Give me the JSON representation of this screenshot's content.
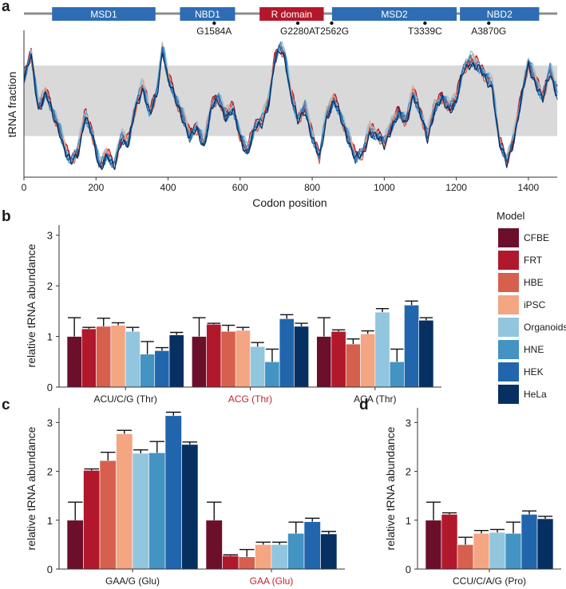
{
  "colors": {
    "domain_blue": "#2e6db4",
    "domain_red": "#b3172b",
    "band": "#d9d9d9",
    "axis": "#333333",
    "label_red": "#c0272d"
  },
  "panel_a": {
    "label": "a",
    "domains": [
      {
        "name": "MSD1",
        "start": 78,
        "end": 365,
        "color": "blue"
      },
      {
        "name": "NBD1",
        "start": 433,
        "end": 586,
        "color": "blue"
      },
      {
        "name": "R domain",
        "start": 654,
        "end": 832,
        "color": "red"
      },
      {
        "name": "MSD2",
        "start": 855,
        "end": 1201,
        "color": "blue"
      },
      {
        "name": "NBD2",
        "start": 1210,
        "end": 1430,
        "color": "blue"
      }
    ],
    "snps": [
      {
        "label": "G1584A",
        "codon": 528
      },
      {
        "label": "G2280A",
        "codon": 760
      },
      {
        "label": "T2562G",
        "codon": 854
      },
      {
        "label": "T3339C",
        "codon": 1113
      },
      {
        "label": "A3870G",
        "codon": 1290
      }
    ],
    "chart_data": {
      "type": "line",
      "title": "",
      "xlabel": "Codon position",
      "ylabel": "tRNA fraction",
      "xlim": [
        0,
        1480
      ],
      "xticks": [
        "0",
        "200",
        "400",
        "600",
        "800",
        "1000",
        "1200",
        "1400"
      ],
      "ylim": [
        0,
        1
      ],
      "band": [
        0.28,
        0.76
      ],
      "profile_x": [
        0,
        20,
        40,
        60,
        80,
        100,
        115,
        130,
        150,
        170,
        190,
        210,
        230,
        250,
        270,
        290,
        310,
        330,
        350,
        370,
        385,
        400,
        420,
        440,
        460,
        480,
        500,
        520,
        540,
        560,
        580,
        600,
        620,
        640,
        660,
        680,
        695,
        710,
        725,
        740,
        760,
        780,
        800,
        820,
        840,
        860,
        880,
        900,
        920,
        940,
        960,
        980,
        1000,
        1020,
        1040,
        1060,
        1080,
        1100,
        1120,
        1140,
        1160,
        1180,
        1200,
        1220,
        1240,
        1260,
        1280,
        1300,
        1320,
        1340,
        1360,
        1380,
        1400,
        1420,
        1440,
        1460,
        1480
      ],
      "profile_y": [
        0.7,
        0.85,
        0.5,
        0.6,
        0.45,
        0.35,
        0.2,
        0.12,
        0.2,
        0.45,
        0.3,
        0.1,
        0.18,
        0.08,
        0.3,
        0.25,
        0.5,
        0.65,
        0.45,
        0.6,
        0.92,
        0.7,
        0.55,
        0.45,
        0.3,
        0.35,
        0.25,
        0.5,
        0.55,
        0.45,
        0.48,
        0.3,
        0.2,
        0.35,
        0.4,
        0.55,
        0.8,
        0.9,
        0.85,
        0.6,
        0.4,
        0.5,
        0.3,
        0.15,
        0.45,
        0.55,
        0.42,
        0.3,
        0.15,
        0.18,
        0.35,
        0.3,
        0.25,
        0.38,
        0.45,
        0.4,
        0.6,
        0.45,
        0.3,
        0.5,
        0.55,
        0.5,
        0.55,
        0.75,
        0.82,
        0.78,
        0.7,
        0.65,
        0.25,
        0.12,
        0.3,
        0.55,
        0.8,
        0.68,
        0.55,
        0.75,
        0.6
      ],
      "series": [
        {
          "name": "CFBE",
          "offset": 0.02
        },
        {
          "name": "FRT",
          "offset": 0.05
        },
        {
          "name": "HBE",
          "offset": 0.0
        },
        {
          "name": "iPSC",
          "offset": 0.03
        },
        {
          "name": "Organoids",
          "offset": 0.06
        },
        {
          "name": "HNE",
          "offset": 0.01
        },
        {
          "name": "HEK",
          "offset": -0.02
        },
        {
          "name": "HeLa",
          "offset": -0.04
        }
      ]
    }
  },
  "legend": {
    "title": "Model",
    "items": [
      {
        "name": "CFBE",
        "color": "#6b0f2b"
      },
      {
        "name": "FRT",
        "color": "#b2182b"
      },
      {
        "name": "HBE",
        "color": "#d6604d"
      },
      {
        "name": "iPSC",
        "color": "#f4a582"
      },
      {
        "name": "Organoids",
        "color": "#92c5de"
      },
      {
        "name": "HNE",
        "color": "#4393c3"
      },
      {
        "name": "HEK",
        "color": "#2166ac"
      },
      {
        "name": "HeLa",
        "color": "#053061"
      }
    ]
  },
  "panel_b": {
    "label": "b",
    "chart_data": {
      "type": "bar",
      "ylabel": "relative tRNA abundance",
      "ylim": [
        0,
        3.2
      ],
      "yticks": [
        "0",
        "1",
        "2",
        "3"
      ],
      "categories": [
        {
          "label": "ACU/C/G (Thr)",
          "highlight": false
        },
        {
          "label": "ACG (Thr)",
          "highlight": true
        },
        {
          "label": "ACA (Thr)",
          "highlight": false
        }
      ],
      "series": [
        {
          "name": "CFBE",
          "values": [
            1.0,
            1.0,
            1.0
          ],
          "errors": [
            0.37,
            0.37,
            0.37
          ]
        },
        {
          "name": "FRT",
          "values": [
            1.15,
            1.24,
            1.1
          ],
          "errors": [
            0.03,
            0.02,
            0.03
          ]
        },
        {
          "name": "HBE",
          "values": [
            1.2,
            1.1,
            0.85
          ],
          "errors": [
            0.16,
            0.12,
            0.1
          ]
        },
        {
          "name": "iPSC",
          "values": [
            1.22,
            1.12,
            1.05
          ],
          "errors": [
            0.05,
            0.06,
            0.06
          ]
        },
        {
          "name": "Organoids",
          "values": [
            1.1,
            0.8,
            1.48
          ],
          "errors": [
            0.08,
            0.08,
            0.07
          ]
        },
        {
          "name": "HNE",
          "values": [
            0.65,
            0.5,
            0.5
          ],
          "errors": [
            0.25,
            0.25,
            0.25
          ]
        },
        {
          "name": "HEK",
          "values": [
            0.72,
            1.35,
            1.62
          ],
          "errors": [
            0.06,
            0.08,
            0.08
          ]
        },
        {
          "name": "HeLa",
          "values": [
            1.03,
            1.2,
            1.32
          ],
          "errors": [
            0.05,
            0.06,
            0.05
          ]
        }
      ]
    }
  },
  "panel_c": {
    "label": "c",
    "chart_data": {
      "type": "bar",
      "ylabel": "relative tRNA abundance",
      "ylim": [
        0,
        3.3
      ],
      "yticks": [
        "0",
        "1",
        "2",
        "3"
      ],
      "categories": [
        {
          "label": "GAA/G (Glu)",
          "highlight": false
        },
        {
          "label": "GAA (Glu)",
          "highlight": true
        }
      ],
      "series": [
        {
          "name": "CFBE",
          "values": [
            1.0,
            1.0
          ],
          "errors": [
            0.37,
            0.37
          ]
        },
        {
          "name": "FRT",
          "values": [
            2.02,
            0.27
          ],
          "errors": [
            0.03,
            0.02
          ]
        },
        {
          "name": "HBE",
          "values": [
            2.22,
            0.25
          ],
          "errors": [
            0.17,
            0.15
          ]
        },
        {
          "name": "iPSC",
          "values": [
            2.77,
            0.5
          ],
          "errors": [
            0.07,
            0.05
          ]
        },
        {
          "name": "Organoids",
          "values": [
            2.37,
            0.5
          ],
          "errors": [
            0.07,
            0.05
          ]
        },
        {
          "name": "HNE",
          "values": [
            2.38,
            0.73
          ],
          "errors": [
            0.23,
            0.23
          ]
        },
        {
          "name": "HEK",
          "values": [
            3.14,
            0.97
          ],
          "errors": [
            0.07,
            0.07
          ]
        },
        {
          "name": "HeLa",
          "values": [
            2.55,
            0.72
          ],
          "errors": [
            0.05,
            0.05
          ]
        }
      ]
    }
  },
  "panel_d": {
    "label": "d",
    "chart_data": {
      "type": "bar",
      "ylabel": "relative tRNA abundance",
      "ylim": [
        0,
        3.3
      ],
      "yticks": [
        "0",
        "1",
        "2",
        "3"
      ],
      "categories": [
        {
          "label": "CCU/C/A/G (Pro)",
          "highlight": false
        }
      ],
      "series": [
        {
          "name": "CFBE",
          "values": [
            1.0
          ],
          "errors": [
            0.37
          ]
        },
        {
          "name": "FRT",
          "values": [
            1.12
          ],
          "errors": [
            0.03
          ]
        },
        {
          "name": "HBE",
          "values": [
            0.5
          ],
          "errors": [
            0.15
          ]
        },
        {
          "name": "iPSC",
          "values": [
            0.73
          ],
          "errors": [
            0.06
          ]
        },
        {
          "name": "Organoids",
          "values": [
            0.75
          ],
          "errors": [
            0.06
          ]
        },
        {
          "name": "HNE",
          "values": [
            0.73
          ],
          "errors": [
            0.23
          ]
        },
        {
          "name": "HEK",
          "values": [
            1.12
          ],
          "errors": [
            0.07
          ]
        },
        {
          "name": "HeLa",
          "values": [
            1.03
          ],
          "errors": [
            0.05
          ]
        }
      ]
    }
  }
}
